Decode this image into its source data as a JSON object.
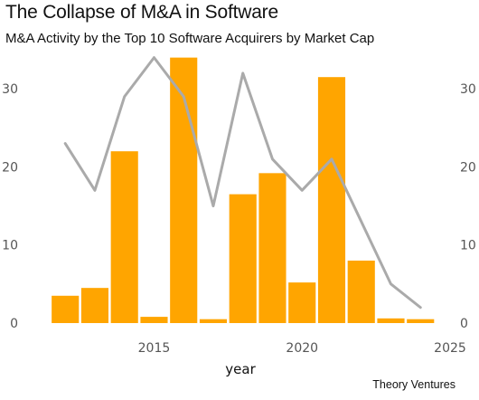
{
  "header": {
    "title": "The Collapse of M&A in Software",
    "subtitle": "M&A Activity by the Top 10 Software Acquirers by Market Cap"
  },
  "source": "Theory Ventures",
  "colors": {
    "bar": "#FFA500",
    "line": "#AAAAAA",
    "background": "#FFFFFF"
  },
  "chart_data": {
    "type": "bar",
    "xlabel": "year",
    "ylabel": "",
    "xlim": [
      2011.2,
      2025
    ],
    "ylim": [
      0,
      35
    ],
    "grid": false,
    "legend": "none",
    "x_ticks": [
      2015,
      2020,
      2025
    ],
    "y_ticks_left": [
      0,
      10,
      20,
      30
    ],
    "y_ticks_right": [
      0,
      10,
      20,
      30
    ],
    "series": [
      {
        "type": "bar",
        "x": [
          2012,
          2013,
          2014,
          2015,
          2016,
          2017,
          2018,
          2019,
          2020,
          2021,
          2022,
          2023,
          2024
        ],
        "values": [
          3.5,
          4.5,
          22,
          0.8,
          34,
          0.5,
          16.5,
          19.2,
          5.2,
          31.5,
          8,
          0.6,
          0.5
        ],
        "color": "#FFA500"
      },
      {
        "type": "line",
        "x": [
          2012,
          2013,
          2014,
          2015,
          2016,
          2017,
          2018,
          2019,
          2020,
          2021,
          2022,
          2023,
          2024
        ],
        "values": [
          23,
          17,
          29,
          34,
          29,
          15,
          32,
          21,
          17,
          21,
          13,
          5,
          2
        ],
        "color": "#AAAAAA"
      }
    ]
  }
}
